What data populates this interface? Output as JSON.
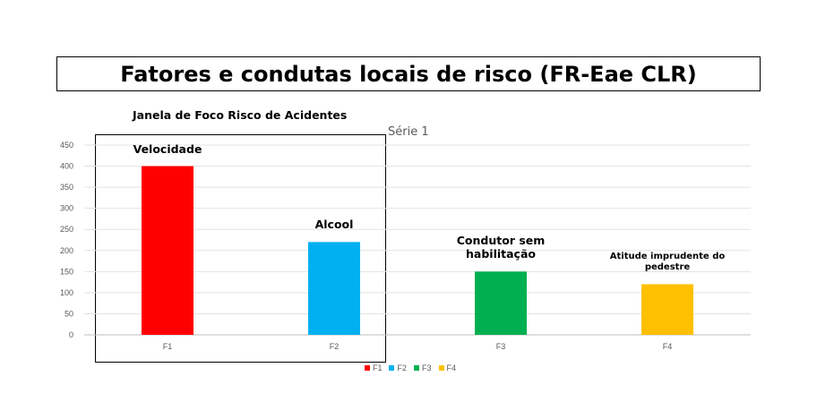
{
  "title": "Fatores e condutas locais de risco (FR-Eae CLR)",
  "focus_window_label": "Janela de Foco Risco de Acidentes",
  "series_label": "Série 1",
  "chart_data": {
    "type": "bar",
    "title": "Fatores e condutas locais de risco (FR-Eae CLR)",
    "categories": [
      "F1",
      "F2",
      "F3",
      "F4"
    ],
    "values": [
      400,
      220,
      150,
      120
    ],
    "ylim": [
      0,
      450
    ],
    "yticks": [
      0,
      50,
      100,
      150,
      200,
      250,
      300,
      350,
      400,
      450
    ],
    "colors": [
      "#ff0000",
      "#00b0f0",
      "#00b050",
      "#ffc000"
    ],
    "bar_labels": [
      "Velocidade",
      "Alcool",
      "Condutor sem habilitação",
      "Atitude imprudente do pedestre"
    ],
    "legend": [
      "F1",
      "F2",
      "F3",
      "F4"
    ],
    "legend_position": "bottom",
    "grid": true,
    "xlabel": "",
    "ylabel": ""
  }
}
